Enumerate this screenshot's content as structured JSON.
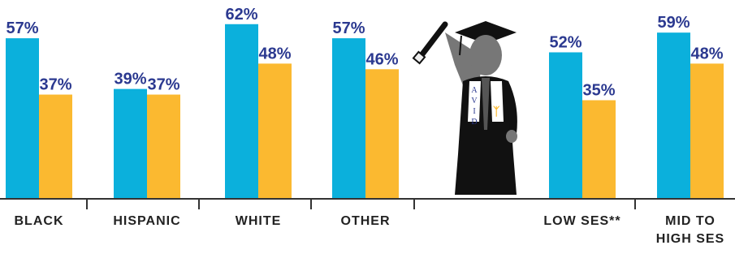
{
  "chart_data": {
    "type": "bar",
    "categories": [
      "BLACK",
      "HISPANIC",
      "WHITE",
      "OTHER",
      "LOW SES**",
      "MID TO HIGH SES"
    ],
    "series": [
      {
        "color": "#0bb0dc",
        "values": [
          57,
          39,
          62,
          57,
          52,
          59
        ],
        "value_labels": [
          "57%",
          "39%",
          "62%",
          "57%",
          "52%",
          "59%"
        ]
      },
      {
        "color": "#fbb930",
        "values": [
          37,
          37,
          48,
          46,
          35,
          48
        ],
        "value_labels": [
          "37%",
          "37%",
          "48%",
          "46%",
          "35%",
          "48%"
        ]
      }
    ],
    "ylim": [
      0,
      70
    ],
    "figure_label": "AVID"
  }
}
